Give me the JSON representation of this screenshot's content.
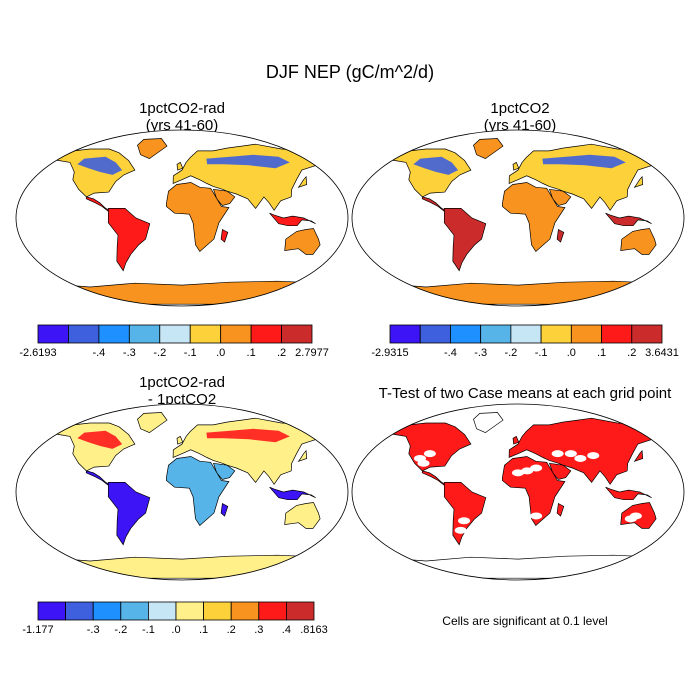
{
  "figure": {
    "title": "DJF NEP (gC/m^2/d)"
  },
  "panels": [
    {
      "id": "p1",
      "title_line1": "1pctCO2-rad",
      "title_line2": "(yrs 41-60)"
    },
    {
      "id": "p2",
      "title_line1": "1pctCO2",
      "title_line2": "(yrs 41-60)"
    },
    {
      "id": "p3",
      "title_line1": "1pctCO2-rad",
      "title_line2": "- 1pctCO2"
    },
    {
      "id": "p4",
      "title_line1": "T-Test of two Case means at each grid point",
      "title_line2": ""
    }
  ],
  "colorbars": [
    {
      "id": "cb1",
      "colors": [
        "#3c14f5",
        "#3e5fde",
        "#1e90ff",
        "#56b4e9",
        "#c7e6f5",
        "#fcd13a",
        "#f7931e",
        "#ff1a1a",
        "#cc2b2b"
      ],
      "labels": [
        {
          "text": "-2.6193",
          "at": 0
        },
        {
          "text": "-.4",
          "at": 2
        },
        {
          "text": "-.3",
          "at": 3
        },
        {
          "text": "-.2",
          "at": 4
        },
        {
          "text": "-.1",
          "at": 5
        },
        {
          "text": ".0",
          "at": 6
        },
        {
          "text": ".1",
          "at": 7
        },
        {
          "text": ".2",
          "at": 8
        },
        {
          "text": "2.7977",
          "at": 9
        }
      ]
    },
    {
      "id": "cb2",
      "colors": [
        "#3c14f5",
        "#3e5fde",
        "#1e90ff",
        "#56b4e9",
        "#c7e6f5",
        "#fcd13a",
        "#f7931e",
        "#ff1a1a",
        "#cc2b2b"
      ],
      "labels": [
        {
          "text": "-2.9315",
          "at": 0
        },
        {
          "text": "-.4",
          "at": 2
        },
        {
          "text": "-.3",
          "at": 3
        },
        {
          "text": "-.2",
          "at": 4
        },
        {
          "text": "-.1",
          "at": 5
        },
        {
          "text": ".0",
          "at": 6
        },
        {
          "text": ".1",
          "at": 7
        },
        {
          "text": ".2",
          "at": 8
        },
        {
          "text": "3.6431",
          "at": 9
        }
      ]
    },
    {
      "id": "cb3",
      "colors": [
        "#3c14f5",
        "#3e5fde",
        "#1e90ff",
        "#56b4e9",
        "#c7e6f5",
        "#fff08a",
        "#fcd13a",
        "#f7931e",
        "#ff1a1a",
        "#cc2b2b"
      ],
      "labels": [
        {
          "text": "-1.177",
          "at": 0
        },
        {
          "text": "-.3",
          "at": 2
        },
        {
          "text": "-.2",
          "at": 3
        },
        {
          "text": "-.1",
          "at": 4
        },
        {
          "text": ".0",
          "at": 5
        },
        {
          "text": ".1",
          "at": 6
        },
        {
          "text": ".2",
          "at": 7
        },
        {
          "text": ".3",
          "at": 8
        },
        {
          "text": ".4",
          "at": 9
        },
        {
          "text": ".8163",
          "at": 10
        }
      ]
    }
  ],
  "significance_note": "Cells are significant at 0.1 level",
  "map_colors": {
    "p1": {
      "north": "#fcd13a",
      "northcold": "#3e5fde",
      "tropics": "#ff1a1a",
      "africa": "#f7931e",
      "australia": "#f7931e",
      "antarctica": "#f7931e",
      "greenland": "#f7931e"
    },
    "p2": {
      "north": "#fcd13a",
      "northcold": "#3e5fde",
      "tropics": "#cc2b2b",
      "africa": "#f7931e",
      "australia": "#f7931e",
      "antarctica": "#f7931e",
      "greenland": "#f7931e"
    },
    "p3": {
      "north": "#fff08a",
      "northcold": "#ff1a1a",
      "tropics": "#3c14f5",
      "africa": "#56b4e9",
      "australia": "#fff08a",
      "antarctica": "#fff08a",
      "greenland": "#fff08a"
    },
    "p4": {
      "north": "#ff1a1a",
      "northcold": "#ff1a1a",
      "tropics": "#ff1a1a",
      "africa": "#ff1a1a",
      "australia": "#ff1a1a",
      "antarctica": "#ffffff",
      "greenland": "#ffffff"
    }
  }
}
